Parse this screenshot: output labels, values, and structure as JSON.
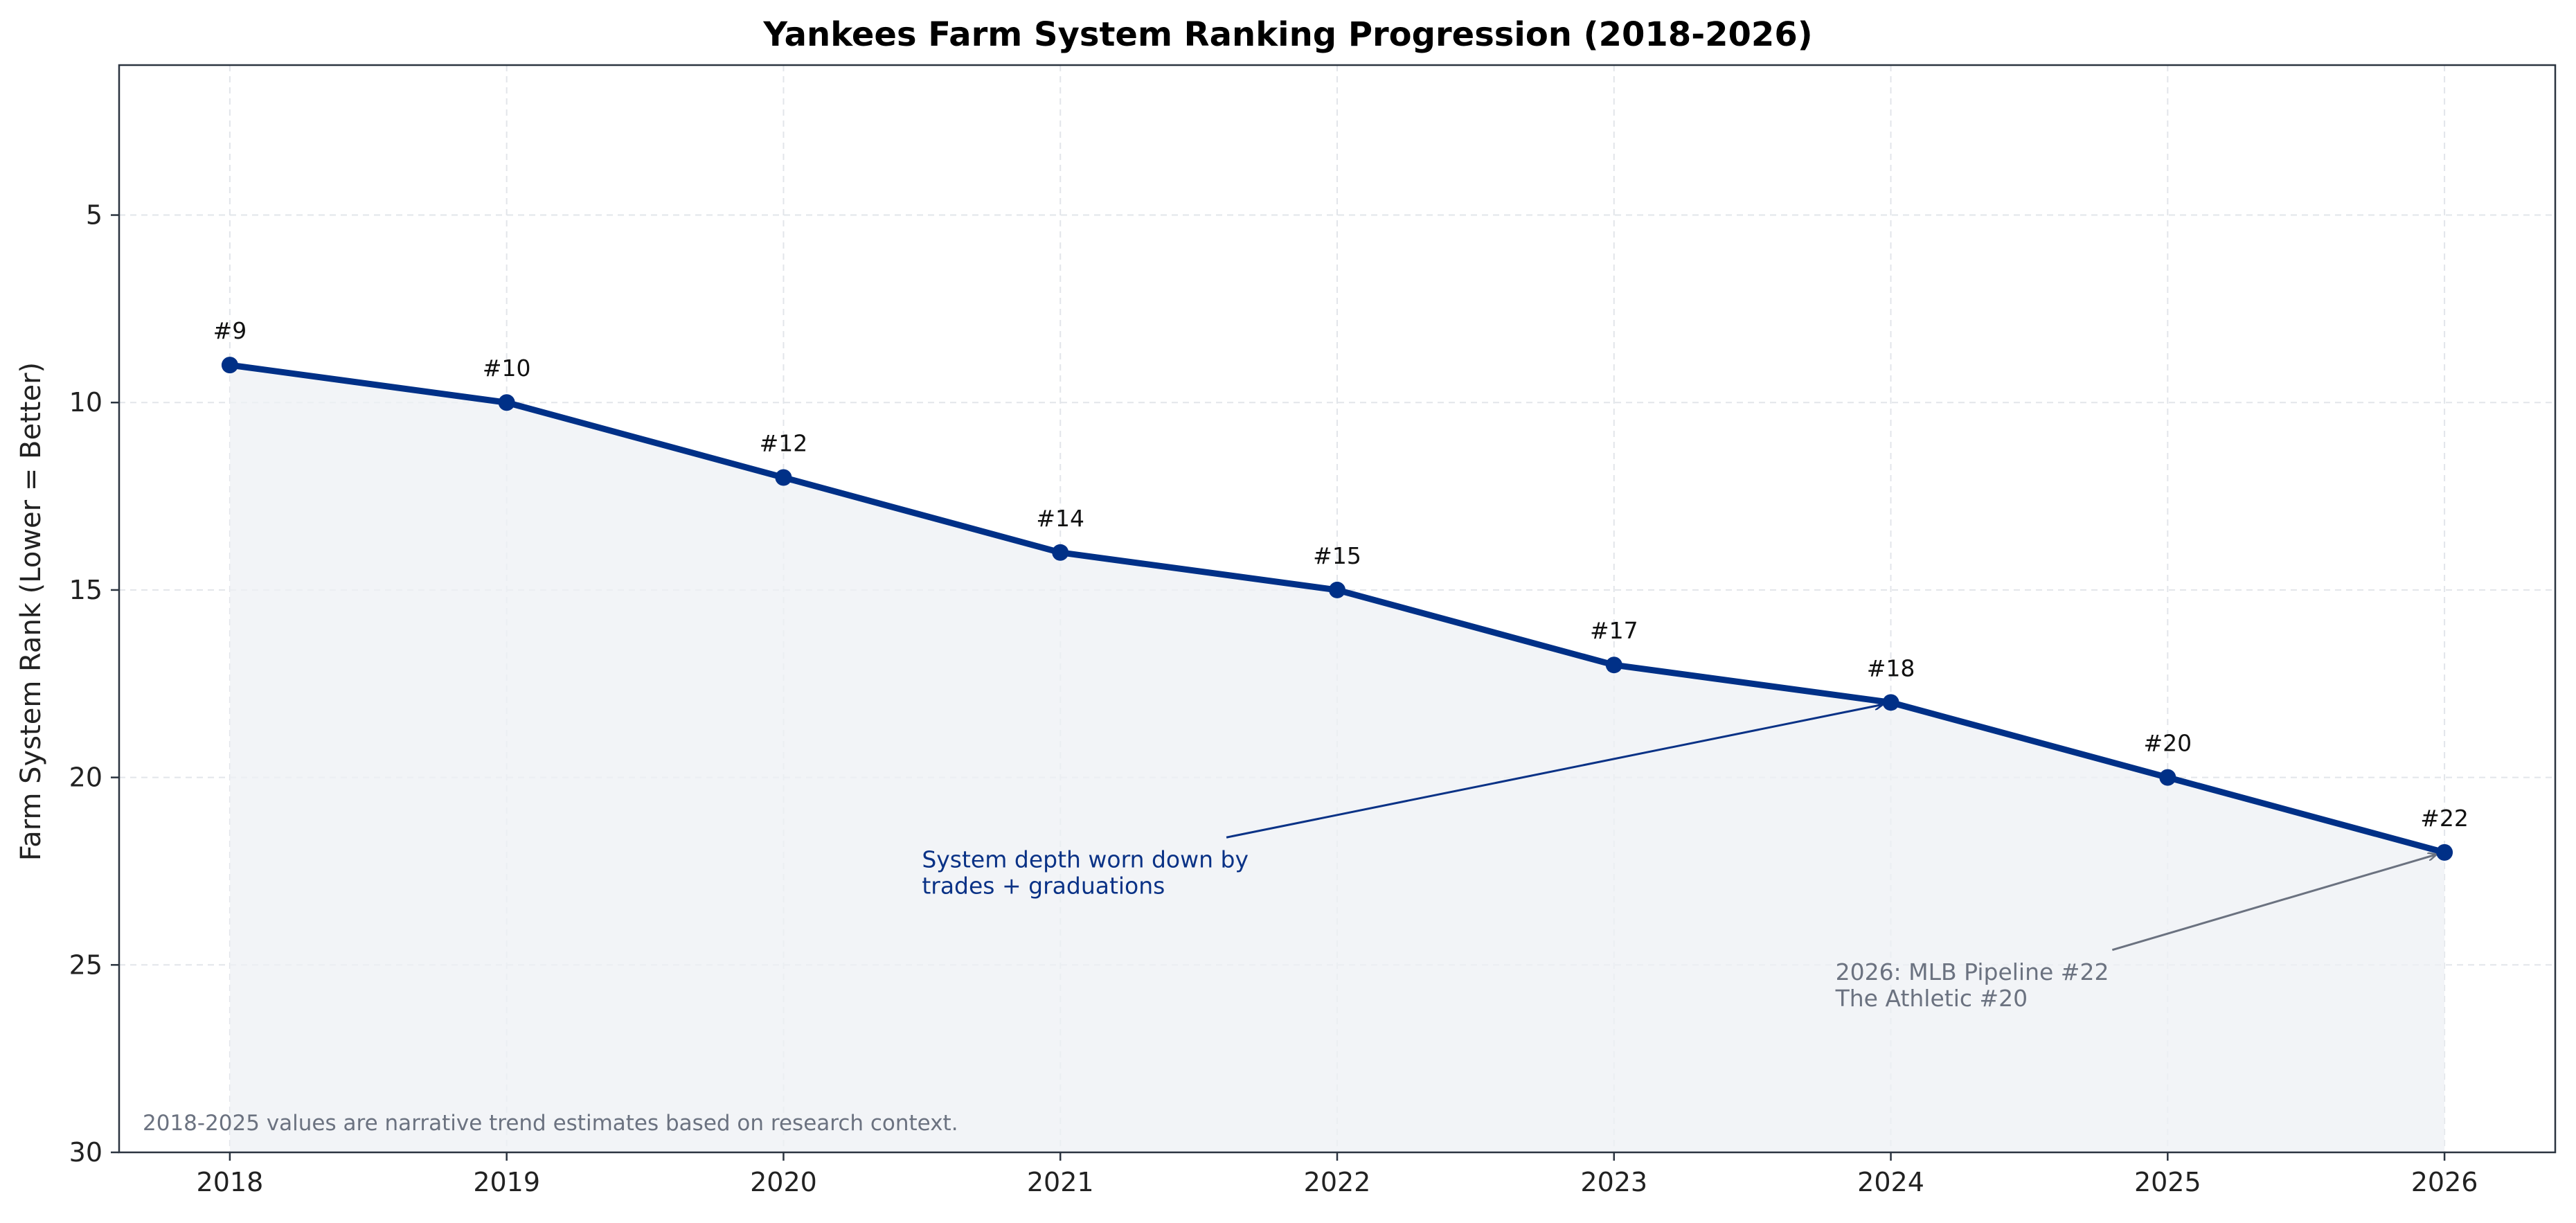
{
  "colors": {
    "line": "#003087",
    "fill": "#eef0f4",
    "grid": "#e2e5ea",
    "axis": "#2b3440",
    "annotation_primary": "#0a3286",
    "annotation_secondary": "#6b7280"
  },
  "chart_data": {
    "type": "line",
    "title": "Yankees Farm System Ranking Progression (2018-2026)",
    "xlabel": "",
    "ylabel": "Farm System Rank (Lower = Better)",
    "x": [
      2018,
      2019,
      2020,
      2021,
      2022,
      2023,
      2024,
      2025,
      2026
    ],
    "series": [
      {
        "values": [
          9,
          10,
          12,
          14,
          15,
          17,
          18,
          20,
          22
        ]
      }
    ],
    "data_labels": [
      "#9",
      "#10",
      "#12",
      "#14",
      "#15",
      "#17",
      "#18",
      "#20",
      "#22"
    ],
    "xlim": [
      2017.6,
      2026.4
    ],
    "ylim": [
      30,
      1
    ],
    "y_inverted": true,
    "xticks": [
      "2018",
      "2019",
      "2020",
      "2021",
      "2022",
      "2023",
      "2024",
      "2025",
      "2026"
    ],
    "yticks": [
      5,
      10,
      15,
      20,
      25,
      30
    ],
    "yticks_labels": [
      "5",
      "10",
      "15",
      "20",
      "25",
      "30"
    ],
    "grid": true,
    "area_fill": true,
    "annotations": [
      {
        "lines": [
          "System depth worn down by",
          "trades + graduations"
        ],
        "text_at": {
          "x": 2020.5,
          "y": 22.4
        },
        "arrow_from": {
          "x": 2021.6,
          "y": 21.6
        },
        "arrow_to": {
          "x": 2024,
          "y": 18
        },
        "style": "primary"
      },
      {
        "lines": [
          "2026: MLB Pipeline #22",
          "The Athletic #20"
        ],
        "text_at": {
          "x": 2023.8,
          "y": 25.4
        },
        "arrow_from": {
          "x": 2024.8,
          "y": 24.6
        },
        "arrow_to": {
          "x": 2026,
          "y": 22
        },
        "style": "secondary"
      }
    ],
    "footnote": "2018-2025 values are narrative trend estimates based on research context."
  }
}
